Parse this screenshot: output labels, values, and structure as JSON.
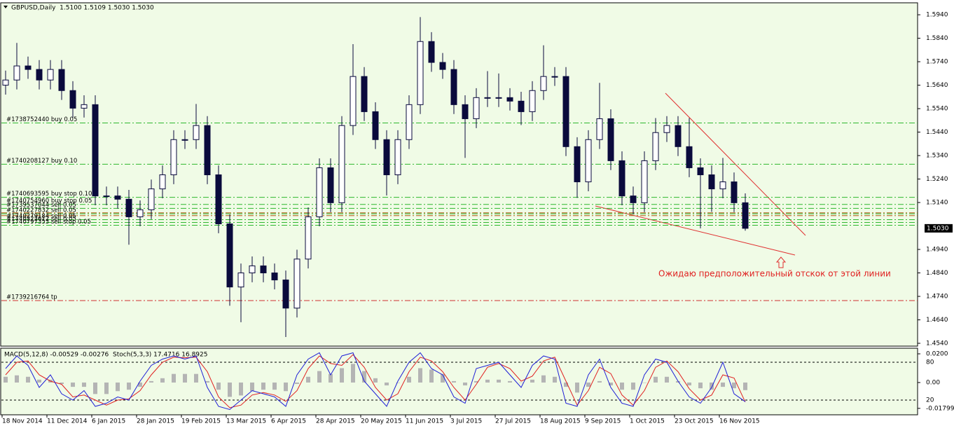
{
  "chart_data": [
    {
      "type": "candlestick",
      "title": "GBPUSD,Daily  1.5100 1.5109 1.5030 1.5030",
      "open": [
        1.564,
        1.5662,
        1.5722,
        1.5707,
        1.5662,
        1.5707,
        1.5617,
        1.5542,
        1.5557,
        1.5168,
        1.5168,
        1.5154,
        1.5079,
        1.5109,
        1.5198,
        1.5258,
        1.5408,
        1.5408,
        1.5468,
        1.5258,
        1.5049,
        1.478,
        1.484,
        1.487,
        1.484,
        1.481,
        1.469,
        1.4899,
        1.5079,
        1.5288,
        1.5139,
        1.5468,
        1.5677,
        1.5527,
        1.5408,
        1.5258,
        1.5408,
        1.5557,
        1.5826,
        1.5737,
        1.5707,
        1.5557,
        1.5497,
        1.5587,
        1.5587,
        1.5587,
        1.5572,
        1.5527,
        1.5617,
        1.5677,
        1.5677,
        1.5378,
        1.5228,
        1.5408,
        1.5497,
        1.5318,
        1.5168,
        1.5139,
        1.5318,
        1.5438,
        1.5468,
        1.5378,
        1.5288,
        1.5258,
        1.5198,
        1.5228,
        1.5139
      ],
      "high": [
        1.5702,
        1.582,
        1.5762,
        1.5747,
        1.5747,
        1.5747,
        1.5657,
        1.5597,
        1.5597,
        1.5208,
        1.5208,
        1.5194,
        1.5149,
        1.5238,
        1.5298,
        1.5448,
        1.5448,
        1.556,
        1.5508,
        1.5298,
        1.5089,
        1.488,
        1.491,
        1.491,
        1.488,
        1.485,
        1.4939,
        1.5119,
        1.5328,
        1.5328,
        1.5508,
        1.5815,
        1.5717,
        1.5567,
        1.5448,
        1.5448,
        1.5597,
        1.593,
        1.5866,
        1.5777,
        1.5747,
        1.5597,
        1.5627,
        1.57,
        1.569,
        1.5627,
        1.5612,
        1.5657,
        1.581,
        1.5717,
        1.5717,
        1.5418,
        1.5448,
        1.565,
        1.5537,
        1.5358,
        1.5208,
        1.5358,
        1.55,
        1.5508,
        1.5508,
        1.55,
        1.5328,
        1.5298,
        1.533,
        1.5268,
        1.5179
      ],
      "low": [
        1.56,
        1.5622,
        1.5667,
        1.5622,
        1.5622,
        1.5577,
        1.5502,
        1.5502,
        1.5128,
        1.5128,
        1.5114,
        1.496,
        1.5039,
        1.5069,
        1.5158,
        1.5218,
        1.5368,
        1.5368,
        1.5218,
        1.5009,
        1.47,
        1.463,
        1.48,
        1.48,
        1.477,
        1.4567,
        1.465,
        1.4859,
        1.5039,
        1.5099,
        1.5099,
        1.5428,
        1.5487,
        1.5368,
        1.517,
        1.5218,
        1.5368,
        1.5517,
        1.5697,
        1.5667,
        1.5517,
        1.533,
        1.5457,
        1.5547,
        1.5547,
        1.5532,
        1.547,
        1.5487,
        1.5577,
        1.5637,
        1.5338,
        1.516,
        1.5188,
        1.5368,
        1.5278,
        1.5128,
        1.509,
        1.5099,
        1.5278,
        1.5398,
        1.5338,
        1.5248,
        1.503,
        1.51,
        1.5158,
        1.5099,
        1.502
      ],
      "close": [
        1.5662,
        1.5722,
        1.5707,
        1.5662,
        1.5707,
        1.5617,
        1.5542,
        1.5557,
        1.5168,
        1.5168,
        1.5154,
        1.5079,
        1.5109,
        1.5198,
        1.5258,
        1.5408,
        1.5408,
        1.5468,
        1.5258,
        1.5049,
        1.478,
        1.484,
        1.487,
        1.484,
        1.481,
        1.469,
        1.4899,
        1.5079,
        1.5288,
        1.5139,
        1.5468,
        1.5677,
        1.5527,
        1.5408,
        1.5258,
        1.5408,
        1.5557,
        1.5826,
        1.5737,
        1.5707,
        1.5557,
        1.5497,
        1.5587,
        1.5587,
        1.5587,
        1.5572,
        1.5527,
        1.5617,
        1.5677,
        1.5677,
        1.5378,
        1.5228,
        1.5408,
        1.5497,
        1.5318,
        1.5168,
        1.5139,
        1.5318,
        1.5438,
        1.5468,
        1.5378,
        1.5288,
        1.5258,
        1.5198,
        1.5228,
        1.5139,
        1.503
      ],
      "up_color": "#ffffff",
      "down_color": "#0a0a3c",
      "wick_color": "#0a0a3c",
      "x_labels": [
        "18 Nov 2014",
        "11 Dec 2014",
        "6 Jan 2015",
        "28 Jan 2015",
        "19 Feb 2015",
        "13 Mar 2015",
        "6 Apr 2015",
        "28 Apr 2015",
        "20 May 2015",
        "11 Jun 2015",
        "3 Jul 2015",
        "27 Jul 2015",
        "18 Aug 2015",
        "9 Sep 2015",
        "1 Oct 2015",
        "23 Oct 2015",
        "16 Nov 2015"
      ],
      "ylim": [
        1.4528,
        1.5991
      ],
      "yticks": [
        {
          "value": 1.594,
          "label": "1.5940"
        },
        {
          "value": 1.584,
          "label": "1.5840"
        },
        {
          "value": 1.574,
          "label": "1.5740"
        },
        {
          "value": 1.564,
          "label": "1.5640"
        },
        {
          "value": 1.554,
          "label": "1.5540"
        },
        {
          "value": 1.544,
          "label": "1.5440"
        },
        {
          "value": 1.534,
          "label": "1.5340"
        },
        {
          "value": 1.524,
          "label": "1.5240"
        },
        {
          "value": 1.514,
          "label": "1.5140"
        },
        {
          "value": 1.494,
          "label": "1.4940"
        },
        {
          "value": 1.484,
          "label": "1.4840"
        },
        {
          "value": 1.474,
          "label": "1.4740"
        },
        {
          "value": 1.464,
          "label": "1.4640"
        },
        {
          "value": 1.454,
          "label": "1.4540"
        }
      ],
      "last_price": {
        "value": 1.503,
        "label": "1.5030"
      },
      "order_lines": [
        {
          "label": "#1738752440 buy 0.05",
          "price": 1.5479,
          "color": "#2eb82e"
        },
        {
          "label": "#1740208127 buy 0.10",
          "price": 1.5303,
          "color": "#2eb82e"
        },
        {
          "label": "#1740693595 buy stop 0.10",
          "price": 1.5162,
          "color": "#2eb82e"
        },
        {
          "label": "#1740754960 buy stop 0.05",
          "price": 1.5132,
          "color": "#2eb82e"
        },
        {
          "label": "#1739537044 sell 0.05",
          "price": 1.5115,
          "color": "#2eb82e"
        },
        {
          "price": 1.5096,
          "color": "#b05a10"
        },
        {
          "label": "#1740227832 sell 0.05",
          "price": 1.5092,
          "color": "#2eb82e"
        },
        {
          "price": 1.5084,
          "color": "#b05a10"
        },
        {
          "label": "#1740279184 sell 0.05",
          "price": 1.5067,
          "color": "#2eb82e"
        },
        {
          "label": "#1740322612 sell 0.05",
          "price": 1.5055,
          "color": "#2eb82e"
        },
        {
          "label": "#1740797353 sell stop 0.05",
          "price": 1.5043,
          "color": "#2eb82e"
        },
        {
          "label": "#1739216764 tp",
          "price": 1.4722,
          "color": "#d03030"
        }
      ],
      "annotation": "Ожидаю предположительный отскок от этой линии"
    },
    {
      "type": "macd-stoch",
      "title": "MACD(5,12,8) -0.00529 -0.00276  Stoch(5,3,3) 17.4716 16.8925",
      "histogram": {
        "color": "#b4b4b4",
        "values": [
          0.004,
          0.005,
          0.004,
          0.002,
          0.002,
          -0.001,
          -0.003,
          -0.003,
          -0.008,
          -0.008,
          -0.006,
          -0.005,
          -0.003,
          0.001,
          0.003,
          0.006,
          0.006,
          0.006,
          0.001,
          -0.005,
          -0.01,
          -0.009,
          -0.006,
          -0.005,
          -0.005,
          -0.006,
          -0.001,
          0.004,
          0.008,
          0.006,
          0.01,
          0.013,
          0.008,
          0.003,
          -0.002,
          0.0,
          0.004,
          0.01,
          0.009,
          0.006,
          0.001,
          -0.002,
          0.001,
          0.002,
          0.002,
          0.001,
          0.0,
          0.002,
          0.005,
          0.004,
          -0.003,
          -0.007,
          -0.003,
          0.001,
          -0.002,
          -0.005,
          -0.005,
          0.0,
          0.004,
          0.004,
          0.001,
          -0.002,
          -0.004,
          -0.005,
          -0.003,
          -0.004,
          -0.00529
        ]
      },
      "stoch_main": {
        "color": "#1f1fd6",
        "values": [
          70,
          90,
          75,
          40,
          60,
          30,
          20,
          35,
          10,
          15,
          25,
          20,
          50,
          75,
          85,
          90,
          85,
          90,
          40,
          10,
          5,
          20,
          35,
          30,
          25,
          10,
          60,
          85,
          95,
          60,
          90,
          95,
          50,
          30,
          10,
          50,
          80,
          95,
          70,
          60,
          25,
          15,
          70,
          75,
          80,
          60,
          40,
          75,
          90,
          85,
          15,
          10,
          60,
          85,
          40,
          15,
          10,
          60,
          85,
          80,
          50,
          25,
          15,
          40,
          80,
          30,
          17.4716
        ]
      },
      "stoch_signal": {
        "color": "#e02020",
        "values": [
          60,
          80,
          82,
          60,
          50,
          45,
          25,
          28,
          20,
          12,
          20,
          22,
          35,
          60,
          80,
          88,
          87,
          88,
          65,
          25,
          8,
          12,
          28,
          32,
          28,
          18,
          35,
          70,
          90,
          78,
          75,
          92,
          72,
          40,
          20,
          30,
          65,
          88,
          82,
          65,
          40,
          20,
          45,
          72,
          78,
          70,
          50,
          58,
          82,
          88,
          50,
          12,
          35,
          72,
          62,
          28,
          12,
          35,
          72,
          82,
          65,
          38,
          20,
          28,
          60,
          55,
          16.8925
        ]
      },
      "ylim": [
        -0.0215,
        0.0239
      ],
      "yticks": [
        {
          "value": 0.02,
          "label": "0.0200"
        },
        {
          "value": 0,
          "label": "0.00"
        },
        {
          "value": -0.01799,
          "label": "-0.01799"
        }
      ],
      "y2lim": [
        -1.1,
        102.2
      ],
      "y2ticks": [
        80,
        20
      ]
    }
  ]
}
